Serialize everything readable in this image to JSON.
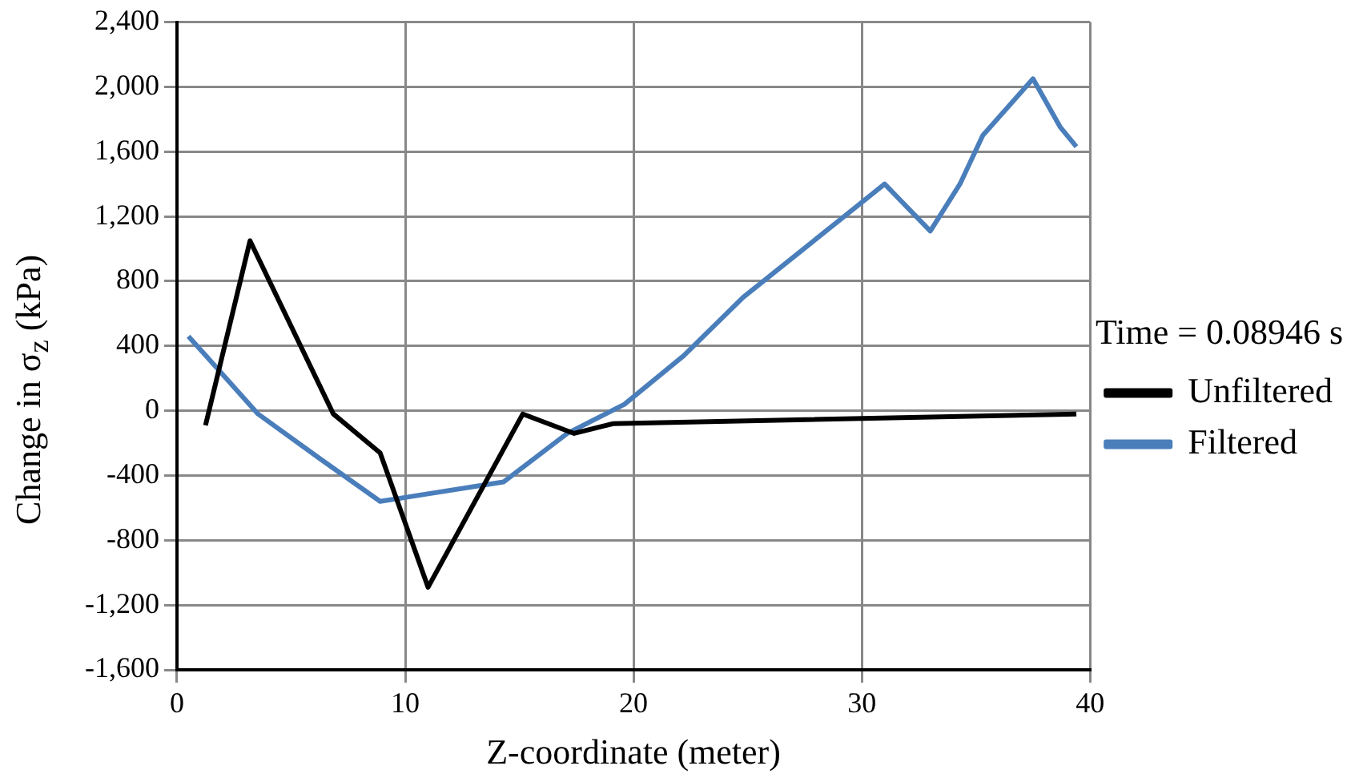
{
  "chart_data": {
    "type": "line",
    "xlabel": "Z-coordinate (meter)",
    "ylabel": "Change in σ$_{z}$ (kPa)",
    "legend_title": "Time = 0.08946 s",
    "legend": "right",
    "xlim": [
      0,
      40
    ],
    "xticks": [
      0,
      10,
      20,
      30,
      40
    ],
    "ylim": [
      -1600,
      2400
    ],
    "yticks": [
      {
        "value": -1600,
        "label": "-1,600"
      },
      {
        "value": -1200,
        "label": "-1,200"
      },
      -800,
      -400,
      0,
      400,
      800,
      {
        "value": 1200,
        "label": "1,200"
      },
      {
        "value": 1600,
        "label": "1,600"
      },
      {
        "value": 2000,
        "label": "2,000"
      },
      {
        "value": 2400,
        "label": "2,400"
      }
    ],
    "grid": true,
    "marker": "none",
    "line_style": "solid",
    "series": [
      {
        "name": "Unfiltered",
        "color": "#000000",
        "x": [
          1.25,
          3.2,
          6.85,
          8.9,
          11.0,
          15.15,
          17.4,
          19.1,
          39.4
        ],
        "values": [
          -90,
          1050,
          -20,
          -260,
          -1090,
          -20,
          -140,
          -80,
          -20
        ]
      },
      {
        "name": "Filtered",
        "color": "#4a7ebb",
        "x": [
          0.5,
          3.55,
          6.3,
          8.9,
          14.3,
          17.1,
          19.6,
          22.2,
          24.8,
          31.0,
          33.0,
          34.3,
          35.3,
          37.5,
          38.7,
          39.4
        ],
        "values": [
          460,
          -20,
          -300,
          -560,
          -440,
          -140,
          40,
          340,
          700,
          1400,
          1110,
          1400,
          1700,
          2050,
          1750,
          1630
        ]
      }
    ]
  }
}
